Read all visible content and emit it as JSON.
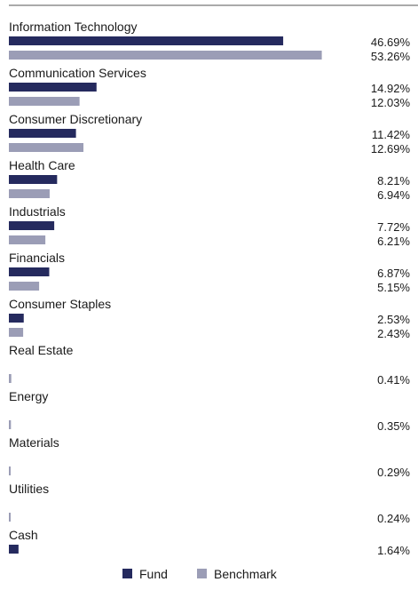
{
  "chart_data": {
    "type": "bar",
    "orientation": "horizontal",
    "categories": [
      "Information Technology",
      "Communication Services",
      "Consumer Discretionary",
      "Health Care",
      "Industrials",
      "Financials",
      "Consumer Staples",
      "Real Estate",
      "Energy",
      "Materials",
      "Utilities",
      "Cash"
    ],
    "series": [
      {
        "name": "Fund",
        "color": "#252a5e",
        "values": [
          46.69,
          14.92,
          11.42,
          8.21,
          7.72,
          6.87,
          2.53,
          null,
          null,
          null,
          null,
          1.64
        ],
        "labels": [
          "46.69%",
          "14.92%",
          "11.42%",
          "8.21%",
          "7.72%",
          "6.87%",
          "2.53%",
          null,
          null,
          null,
          null,
          "1.64%"
        ]
      },
      {
        "name": "Benchmark",
        "color": "#9b9db6",
        "values": [
          53.26,
          12.03,
          12.69,
          6.94,
          6.21,
          5.15,
          2.43,
          0.41,
          0.35,
          0.29,
          0.24,
          null
        ],
        "labels": [
          "53.26%",
          "12.03%",
          "12.69%",
          "6.94%",
          "6.21%",
          "5.15%",
          "2.43%",
          "0.41%",
          "0.35%",
          "0.29%",
          "0.24%",
          null
        ]
      }
    ],
    "legend_position": "bottom-center",
    "grid": false
  }
}
